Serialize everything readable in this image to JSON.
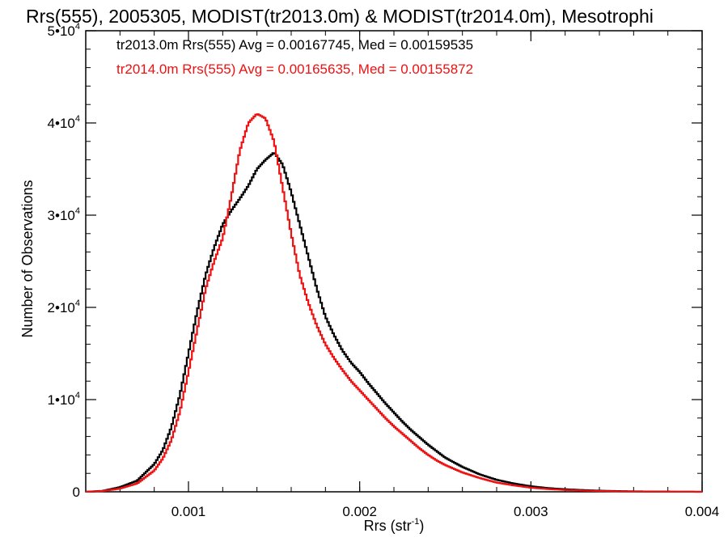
{
  "chart_data": {
    "type": "line",
    "title": "Rrs(555), 2005305, MODIST(tr2013.0m) & MODIST(tr2014.0m), Mesotrophi",
    "xlabel_main": "Rrs (str",
    "xlabel_sup": "-1",
    "xlabel_close": ")",
    "ylabel": "Number of Observations",
    "xlim": [
      0.0004,
      0.004
    ],
    "ylim": [
      0,
      50000
    ],
    "x_ticks": [
      {
        "value": 0.001,
        "label": "0.001"
      },
      {
        "value": 0.002,
        "label": "0.002"
      },
      {
        "value": 0.003,
        "label": "0.003"
      },
      {
        "value": 0.004,
        "label": "0.004"
      }
    ],
    "y_ticks": [
      {
        "value": 0,
        "base": "0",
        "exp": ""
      },
      {
        "value": 10000,
        "base": "1•10",
        "exp": "4"
      },
      {
        "value": 20000,
        "base": "2•10",
        "exp": "4"
      },
      {
        "value": 30000,
        "base": "3•10",
        "exp": "4"
      },
      {
        "value": 40000,
        "base": "4•10",
        "exp": "4"
      },
      {
        "value": 50000,
        "base": "5•10",
        "exp": "4"
      }
    ],
    "annotations": [
      {
        "text": "tr2013.0m Rrs(555) Avg = 0.00167745, Med = 0.00159535",
        "color": "#000000"
      },
      {
        "text": "tr2014.0m Rrs(555) Avg = 0.00165635, Med = 0.00155872",
        "color": "#ee1111"
      }
    ],
    "series": [
      {
        "color": "#000000",
        "x": [
          0.0004,
          0.0005,
          0.0006,
          0.0007,
          0.0008,
          0.00085,
          0.0009,
          0.00095,
          0.001,
          0.00105,
          0.0011,
          0.00115,
          0.0012,
          0.00125,
          0.0013,
          0.00135,
          0.0014,
          0.00145,
          0.0015,
          0.00155,
          0.0016,
          0.00165,
          0.0017,
          0.00175,
          0.0018,
          0.00185,
          0.0019,
          0.00195,
          0.002,
          0.00205,
          0.0021,
          0.00215,
          0.0022,
          0.00225,
          0.0023,
          0.00235,
          0.0024,
          0.00245,
          0.0025,
          0.0026,
          0.0027,
          0.0028,
          0.0029,
          0.003,
          0.0031,
          0.0032,
          0.0033,
          0.0034,
          0.0035,
          0.0036,
          0.0037,
          0.0038,
          0.0039,
          0.004
        ],
        "y": [
          0,
          100,
          500,
          1200,
          3000,
          4500,
          7000,
          10500,
          15000,
          19500,
          23500,
          26500,
          29000,
          30500,
          31800,
          33200,
          35000,
          36000,
          36800,
          35500,
          32500,
          29000,
          25500,
          22000,
          19000,
          17000,
          15300,
          14000,
          13000,
          11800,
          10700,
          9600,
          8600,
          7600,
          6700,
          5900,
          5100,
          4400,
          3700,
          2700,
          1900,
          1300,
          900,
          600,
          400,
          280,
          190,
          120,
          80,
          50,
          30,
          20,
          10,
          5
        ]
      },
      {
        "color": "#ee1111",
        "x": [
          0.0004,
          0.0005,
          0.0006,
          0.0007,
          0.0008,
          0.00085,
          0.0009,
          0.00095,
          0.001,
          0.00105,
          0.0011,
          0.00115,
          0.0012,
          0.00125,
          0.0013,
          0.00135,
          0.0014,
          0.00145,
          0.0015,
          0.00155,
          0.0016,
          0.00165,
          0.0017,
          0.00175,
          0.0018,
          0.00185,
          0.0019,
          0.00195,
          0.002,
          0.00205,
          0.0021,
          0.00215,
          0.0022,
          0.00225,
          0.0023,
          0.00235,
          0.0024,
          0.00245,
          0.0025,
          0.0026,
          0.0027,
          0.0028,
          0.0029,
          0.003,
          0.0031,
          0.0032,
          0.0033,
          0.0034,
          0.0035,
          0.0036,
          0.0037,
          0.0038,
          0.0039,
          0.004
        ],
        "y": [
          0,
          80,
          350,
          900,
          2300,
          3600,
          5600,
          8700,
          13000,
          17500,
          22000,
          25000,
          27500,
          32000,
          37000,
          40000,
          41000,
          40500,
          38000,
          33000,
          28000,
          23500,
          20500,
          18000,
          16000,
          14500,
          13200,
          12000,
          11000,
          10000,
          9000,
          8000,
          7100,
          6300,
          5500,
          4700,
          4000,
          3400,
          2900,
          2100,
          1500,
          1000,
          700,
          450,
          300,
          200,
          130,
          80,
          50,
          30,
          20,
          10,
          5,
          2
        ]
      }
    ]
  }
}
